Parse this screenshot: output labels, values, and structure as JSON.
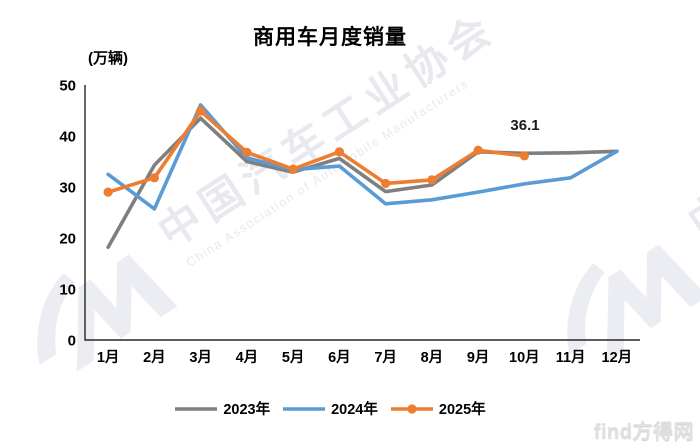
{
  "title": "商用车月度销量",
  "y_axis_unit": "(万辆)",
  "watermark": {
    "cn": "中国汽车工业协会",
    "en": "China Association of Automobile Manufacturers"
  },
  "footer_logo": {
    "text": "find方得网"
  },
  "chart_data": {
    "type": "line",
    "title": "商用车月度销量",
    "ylabel": "(万辆)",
    "categories": [
      "1月",
      "2月",
      "3月",
      "4月",
      "5月",
      "6月",
      "7月",
      "8月",
      "9月",
      "10月",
      "11月",
      "12月"
    ],
    "series": [
      {
        "name": "2023年",
        "color": "#7f7f7f",
        "marker": false,
        "values": [
          18.2,
          34.3,
          43.5,
          35.0,
          32.9,
          35.6,
          29.1,
          30.4,
          36.9,
          36.6,
          36.7,
          37.0
        ]
      },
      {
        "name": "2024年",
        "color": "#5b9bd5",
        "marker": false,
        "values": [
          32.5,
          25.7,
          46.1,
          35.7,
          33.4,
          34.1,
          26.7,
          27.5,
          29.0,
          30.6,
          31.8,
          37.0
        ]
      },
      {
        "name": "2025年",
        "color": "#ed7d31",
        "marker": true,
        "values": [
          29.0,
          31.8,
          44.9,
          36.8,
          33.5,
          36.9,
          30.7,
          31.4,
          37.2,
          36.1,
          null,
          null
        ]
      }
    ],
    "ylim": [
      0,
      50
    ],
    "yticks": [
      0,
      10,
      20,
      30,
      40,
      50
    ],
    "grid": false,
    "legend_position": "bottom",
    "annotation": {
      "text": "36.1",
      "series": "2025年",
      "category": "10月",
      "value": 36.1
    }
  }
}
